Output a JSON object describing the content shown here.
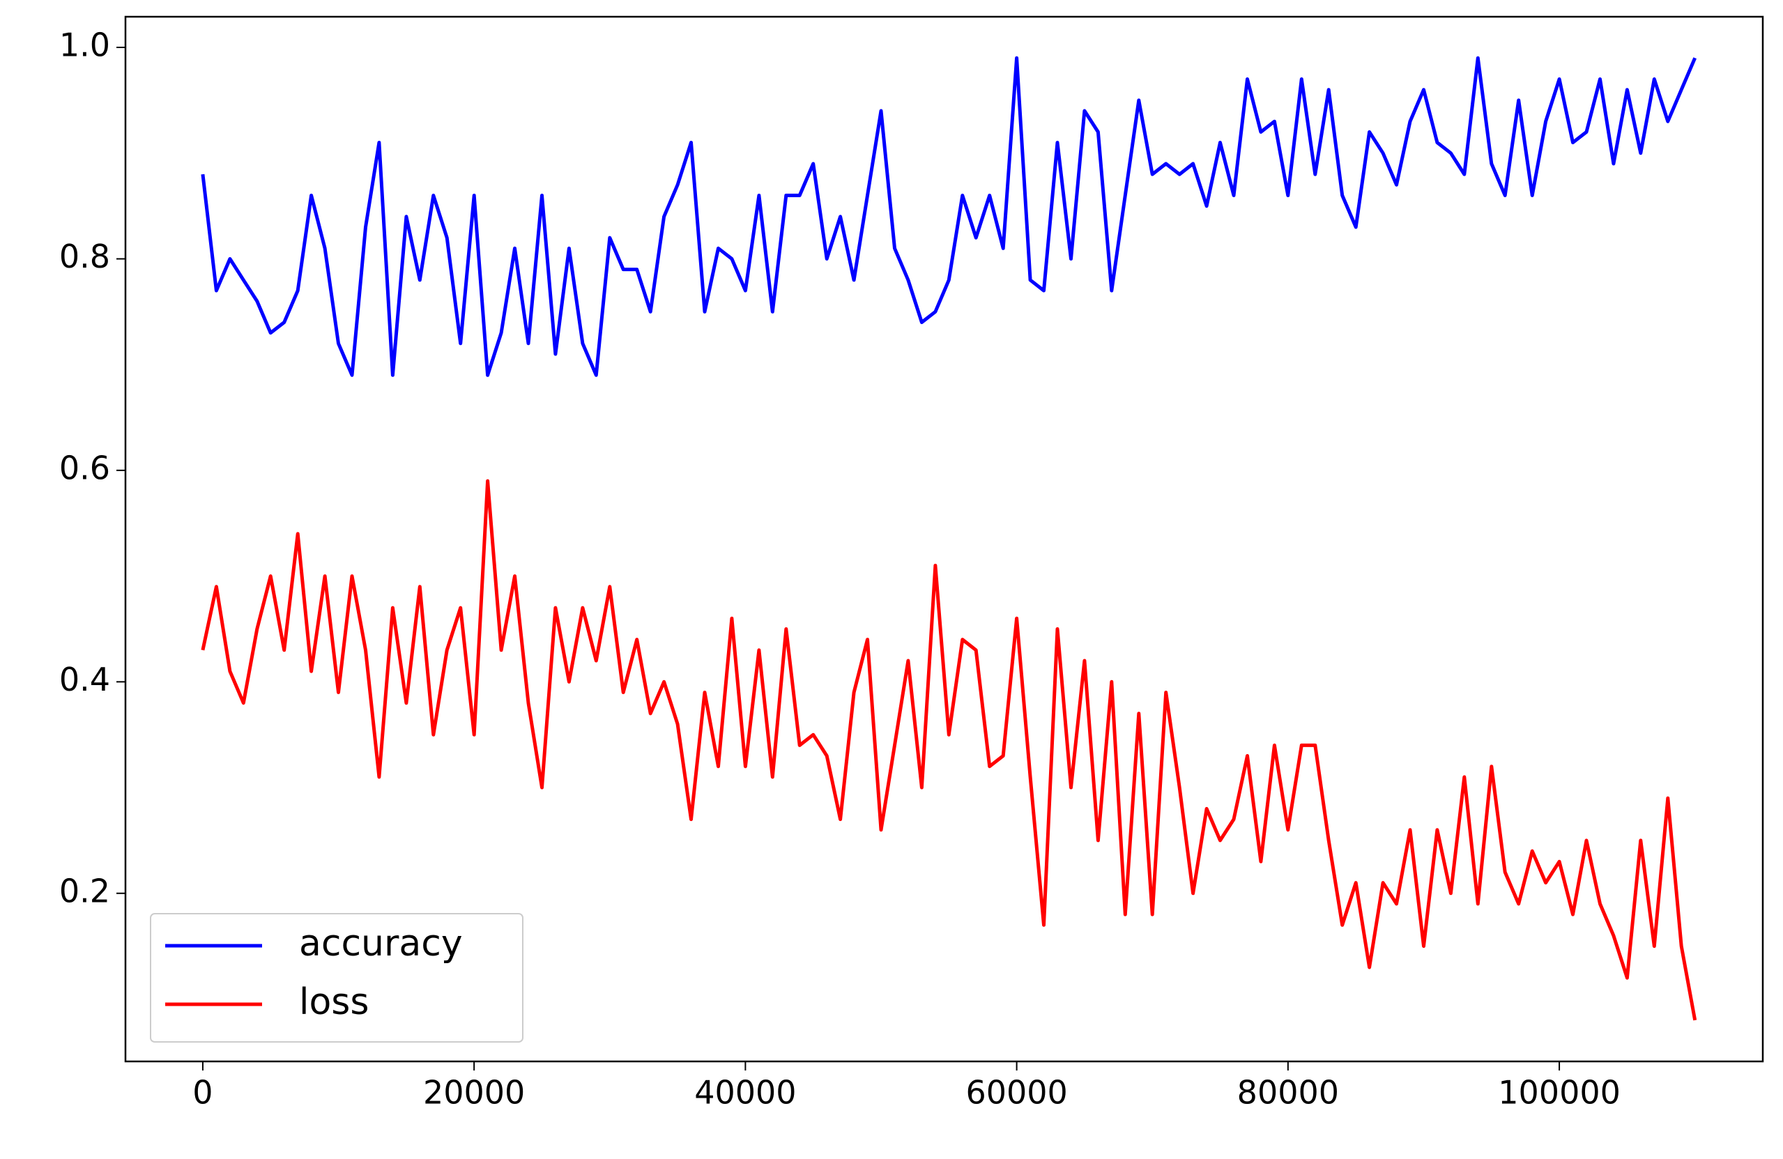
{
  "chart_data": {
    "type": "line",
    "x": [
      0,
      1000,
      2000,
      3000,
      4000,
      5000,
      6000,
      7000,
      8000,
      9000,
      10000,
      11000,
      12000,
      13000,
      14000,
      15000,
      16000,
      17000,
      18000,
      19000,
      20000,
      21000,
      22000,
      23000,
      24000,
      25000,
      26000,
      27000,
      28000,
      29000,
      30000,
      31000,
      32000,
      33000,
      34000,
      35000,
      36000,
      37000,
      38000,
      39000,
      40000,
      41000,
      42000,
      43000,
      44000,
      45000,
      46000,
      47000,
      48000,
      49000,
      50000,
      51000,
      52000,
      53000,
      54000,
      55000,
      56000,
      57000,
      58000,
      59000,
      60000,
      61000,
      62000,
      63000,
      64000,
      65000,
      66000,
      67000,
      68000,
      69000,
      70000,
      71000,
      72000,
      73000,
      74000,
      75000,
      76000,
      77000,
      78000,
      79000,
      80000,
      81000,
      82000,
      83000,
      84000,
      85000,
      86000,
      87000,
      88000,
      89000,
      90000,
      91000,
      92000,
      93000,
      94000,
      95000,
      96000,
      97000,
      98000,
      99000,
      100000,
      101000,
      102000,
      103000,
      104000,
      105000,
      106000,
      107000,
      108000,
      109000,
      110000
    ],
    "series": [
      {
        "name": "accuracy",
        "color": "#0000ff",
        "values": [
          0.88,
          0.77,
          0.8,
          0.78,
          0.76,
          0.73,
          0.74,
          0.77,
          0.86,
          0.81,
          0.72,
          0.69,
          0.83,
          0.91,
          0.69,
          0.84,
          0.78,
          0.86,
          0.82,
          0.72,
          0.86,
          0.69,
          0.73,
          0.81,
          0.72,
          0.86,
          0.71,
          0.81,
          0.72,
          0.69,
          0.82,
          0.79,
          0.79,
          0.75,
          0.84,
          0.87,
          0.91,
          0.75,
          0.81,
          0.8,
          0.77,
          0.86,
          0.75,
          0.86,
          0.86,
          0.89,
          0.8,
          0.84,
          0.78,
          0.86,
          0.94,
          0.81,
          0.78,
          0.74,
          0.75,
          0.78,
          0.86,
          0.82,
          0.86,
          0.81,
          0.99,
          0.78,
          0.77,
          0.91,
          0.8,
          0.94,
          0.92,
          0.77,
          0.86,
          0.95,
          0.88,
          0.89,
          0.88,
          0.89,
          0.85,
          0.91,
          0.86,
          0.97,
          0.92,
          0.93,
          0.86,
          0.97,
          0.88,
          0.96,
          0.86,
          0.83,
          0.92,
          0.9,
          0.87,
          0.93,
          0.96,
          0.91,
          0.9,
          0.88,
          0.99,
          0.89,
          0.86,
          0.95,
          0.86,
          0.93,
          0.97,
          0.91,
          0.92,
          0.97,
          0.89,
          0.96,
          0.9,
          0.97,
          0.93,
          0.96,
          0.99
        ]
      },
      {
        "name": "loss",
        "color": "#ff0000",
        "values": [
          0.43,
          0.49,
          0.41,
          0.38,
          0.45,
          0.5,
          0.43,
          0.54,
          0.41,
          0.5,
          0.39,
          0.5,
          0.43,
          0.31,
          0.47,
          0.38,
          0.49,
          0.35,
          0.43,
          0.47,
          0.35,
          0.59,
          0.43,
          0.5,
          0.38,
          0.3,
          0.47,
          0.4,
          0.47,
          0.42,
          0.49,
          0.39,
          0.44,
          0.37,
          0.4,
          0.36,
          0.27,
          0.39,
          0.32,
          0.46,
          0.32,
          0.43,
          0.31,
          0.45,
          0.34,
          0.35,
          0.33,
          0.27,
          0.39,
          0.44,
          0.26,
          0.34,
          0.42,
          0.3,
          0.51,
          0.35,
          0.44,
          0.43,
          0.32,
          0.33,
          0.46,
          0.31,
          0.17,
          0.45,
          0.3,
          0.42,
          0.25,
          0.4,
          0.18,
          0.37,
          0.18,
          0.39,
          0.3,
          0.2,
          0.28,
          0.25,
          0.27,
          0.33,
          0.23,
          0.34,
          0.26,
          0.34,
          0.34,
          0.25,
          0.17,
          0.21,
          0.13,
          0.21,
          0.19,
          0.26,
          0.15,
          0.26,
          0.2,
          0.31,
          0.19,
          0.32,
          0.22,
          0.19,
          0.24,
          0.21,
          0.23,
          0.18,
          0.25,
          0.19,
          0.16,
          0.12,
          0.25,
          0.15,
          0.29,
          0.15,
          0.08
        ]
      }
    ],
    "xlim": [
      -5700,
      115000
    ],
    "ylim": [
      0.041,
      1.029
    ],
    "xticks": [
      0,
      20000,
      40000,
      60000,
      80000,
      100000
    ],
    "yticks": [
      0.2,
      0.4,
      0.6,
      0.8,
      {
        "value": 1,
        "label": "1.0"
      }
    ],
    "legend": "lower left"
  }
}
